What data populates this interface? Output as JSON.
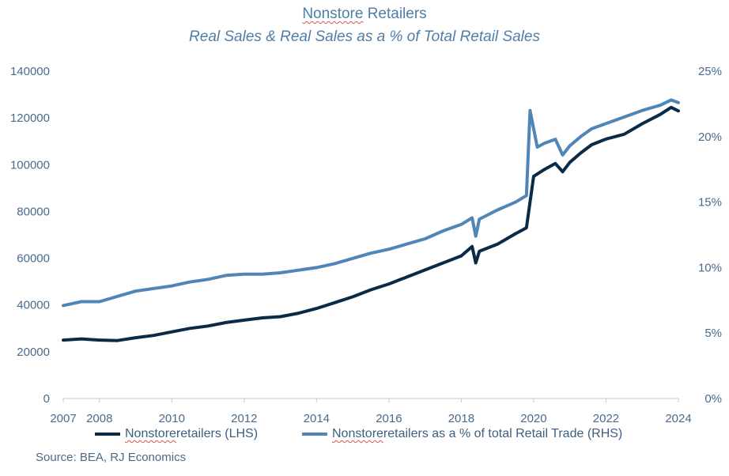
{
  "title": {
    "main_prefix": "Nonstore",
    "main_suffix": " Retailers",
    "subtitle": "Real Sales & Real Sales as a % of Total Retail Sales"
  },
  "legend": {
    "lhs_prefix": "Nonstore",
    "lhs_suffix": " retailers (LHS)",
    "rhs_prefix": "Nonstore",
    "rhs_suffix": " retailers as a % of total Retail Trade (RHS)"
  },
  "source": "Source: BEA, RJ Economics",
  "colors": {
    "lhs_series": "#0b2a47",
    "rhs_series": "#4f86b7",
    "axis_text": "#4a6a8c",
    "title": "#4f7da8"
  },
  "chart_data": {
    "type": "line",
    "x_ticks": [
      2007,
      2008,
      2010,
      2012,
      2014,
      2016,
      2018,
      2020,
      2022,
      2024
    ],
    "xlim": [
      2007,
      2024
    ],
    "ylim_left": [
      0,
      140000
    ],
    "yticks_left": [
      "0",
      "20000",
      "40000",
      "60000",
      "80000",
      "100000",
      "120000",
      "140000"
    ],
    "ylim_right": [
      0,
      25
    ],
    "yticks_right": [
      "0%",
      "5%",
      "10%",
      "15%",
      "20%",
      "25%"
    ],
    "grid": false,
    "legend_position": "bottom",
    "series": [
      {
        "name": "Nonstore retailers (LHS)",
        "axis": "left",
        "x": [
          2007.0,
          2007.5,
          2008.0,
          2008.5,
          2009.0,
          2009.5,
          2010.0,
          2010.5,
          2011.0,
          2011.5,
          2012.0,
          2012.5,
          2013.0,
          2013.5,
          2014.0,
          2014.5,
          2015.0,
          2015.5,
          2016.0,
          2016.5,
          2017.0,
          2017.5,
          2018.0,
          2018.3,
          2018.4,
          2018.5,
          2019.0,
          2019.5,
          2019.8,
          2020.0,
          2020.3,
          2020.6,
          2020.8,
          2021.0,
          2021.3,
          2021.6,
          2022.0,
          2022.5,
          2023.0,
          2023.5,
          2023.8,
          2024.0
        ],
        "values": [
          25000,
          25500,
          25000,
          24800,
          26000,
          27000,
          28500,
          30000,
          31000,
          32500,
          33500,
          34500,
          35000,
          36500,
          38500,
          41000,
          43500,
          46500,
          49000,
          52000,
          55000,
          58000,
          61000,
          65000,
          58000,
          63000,
          66000,
          70500,
          73000,
          95000,
          98000,
          100500,
          97000,
          101000,
          105000,
          108500,
          111000,
          113000,
          117500,
          121500,
          124500,
          123000
        ]
      },
      {
        "name": "Nonstore retailers as a % of total Retail Trade (RHS)",
        "axis": "right",
        "x": [
          2007.0,
          2007.5,
          2008.0,
          2008.5,
          2009.0,
          2009.5,
          2010.0,
          2010.5,
          2011.0,
          2011.5,
          2012.0,
          2012.5,
          2013.0,
          2013.5,
          2014.0,
          2014.5,
          2015.0,
          2015.5,
          2016.0,
          2016.5,
          2017.0,
          2017.5,
          2018.0,
          2018.3,
          2018.4,
          2018.5,
          2019.0,
          2019.5,
          2019.8,
          2019.9,
          2020.1,
          2020.3,
          2020.6,
          2020.8,
          2021.0,
          2021.3,
          2021.6,
          2022.0,
          2022.5,
          2023.0,
          2023.5,
          2023.8,
          2024.0
        ],
        "values": [
          7.1,
          7.4,
          7.4,
          7.8,
          8.2,
          8.4,
          8.6,
          8.9,
          9.1,
          9.4,
          9.5,
          9.5,
          9.6,
          9.8,
          10.0,
          10.3,
          10.7,
          11.1,
          11.4,
          11.8,
          12.2,
          12.8,
          13.3,
          13.8,
          12.4,
          13.7,
          14.4,
          15.0,
          15.5,
          22.0,
          19.2,
          19.5,
          19.8,
          18.6,
          19.3,
          20.0,
          20.6,
          21.0,
          21.5,
          22.0,
          22.4,
          22.8,
          22.6
        ]
      }
    ]
  }
}
